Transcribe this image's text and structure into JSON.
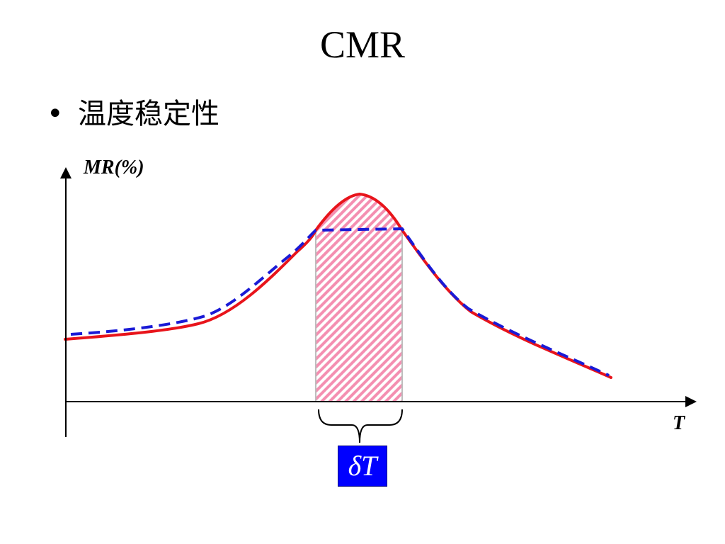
{
  "slide": {
    "title": "CMR",
    "bullet": "•",
    "bullet_text": "温度稳定性"
  },
  "diagram": {
    "y_axis_label": "MR(%)",
    "x_axis_label": "T",
    "bracket_label": "δT",
    "colors": {
      "solid_curve": "#e8141b",
      "dashed_curve": "#1a1ad6",
      "shaded_region": "#f48fb1",
      "label_box": "#0000ff",
      "axes": "#000000"
    }
  }
}
